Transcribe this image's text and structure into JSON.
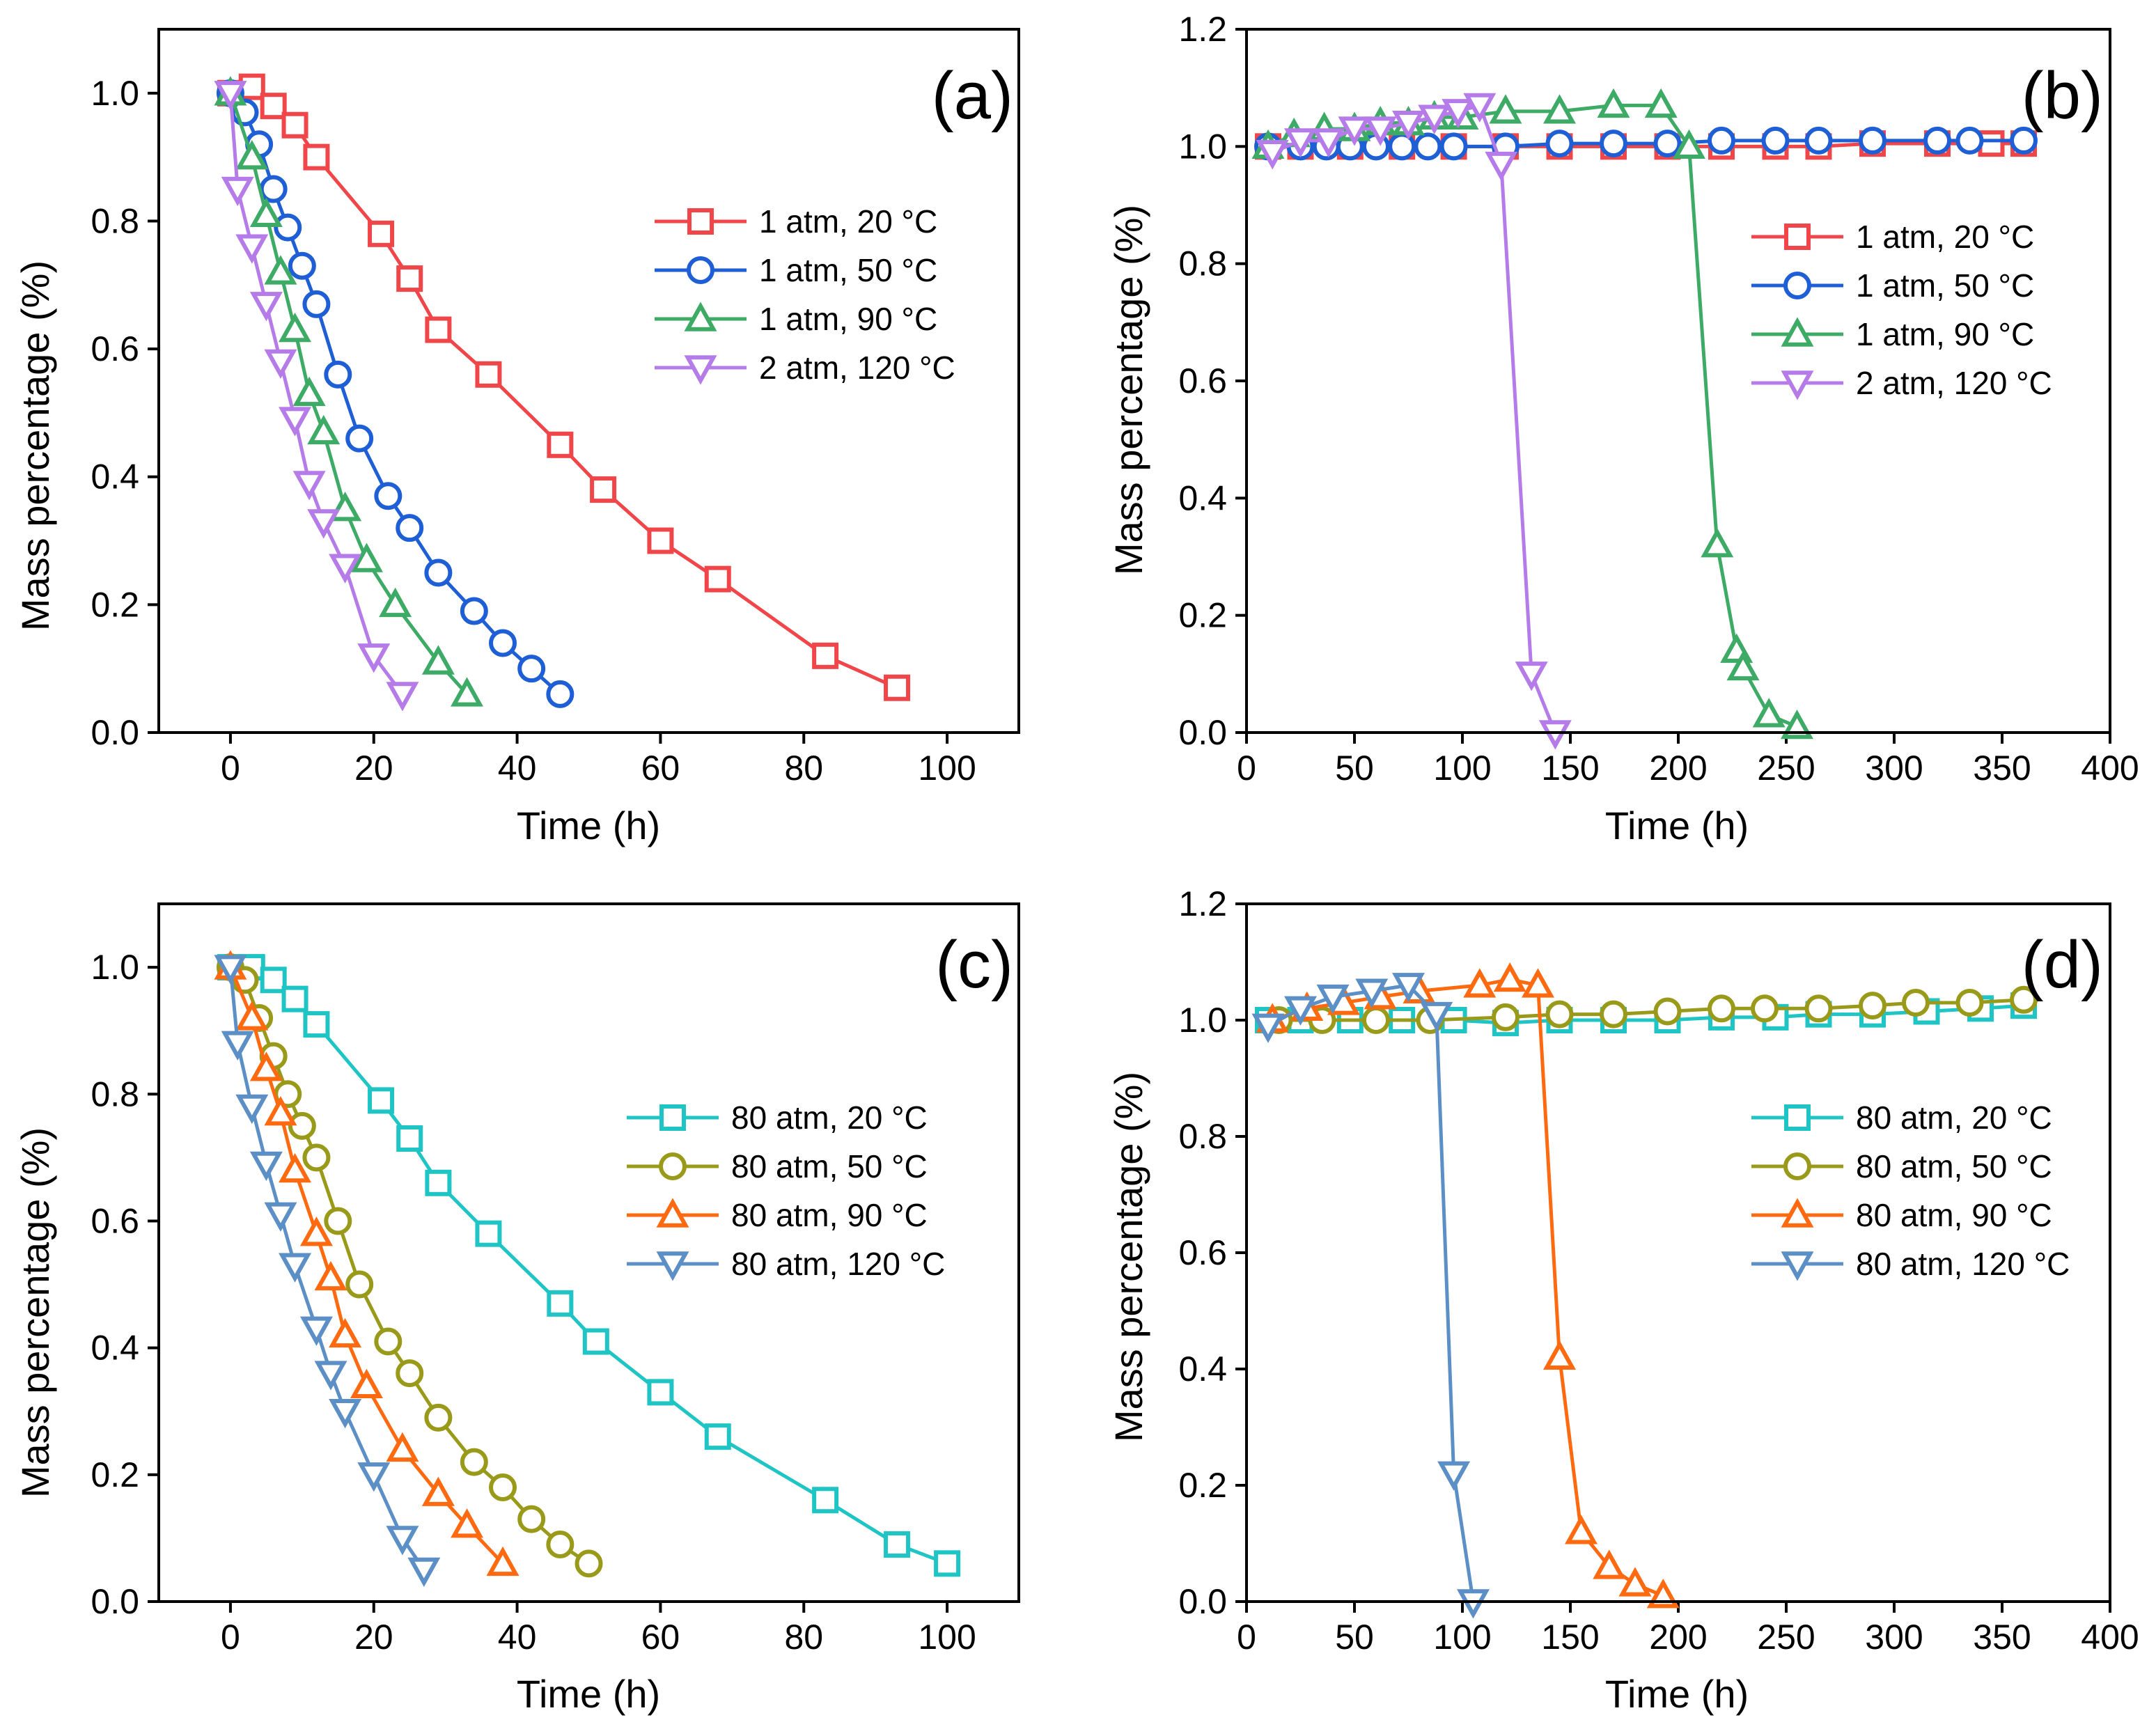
{
  "chart_data": [
    {
      "type": "line",
      "panel_label": "(a)",
      "xlabel": "Time (h)",
      "ylabel": "Mass percentage (%)",
      "xlim": [
        -10,
        110
      ],
      "ylim": [
        0,
        1.1
      ],
      "xticks": [
        0,
        20,
        40,
        60,
        80,
        100
      ],
      "yticks": [
        0.0,
        0.2,
        0.4,
        0.6,
        0.8,
        1.0
      ],
      "xtick_labels": [
        "0",
        "20",
        "40",
        "60",
        "80",
        "100"
      ],
      "ytick_labels": [
        "0.0",
        "0.2",
        "0.4",
        "0.6",
        "0.8",
        "1.0"
      ],
      "legend_position": "center-right",
      "series": [
        {
          "name": "1 atm, 20 °C",
          "color": "#f0464a",
          "marker": "square",
          "x": [
            0,
            3,
            6,
            9,
            12,
            21,
            25,
            29,
            36,
            46,
            52,
            60,
            68,
            83,
            93
          ],
          "y": [
            1.0,
            1.01,
            0.98,
            0.95,
            0.9,
            0.78,
            0.71,
            0.63,
            0.56,
            0.45,
            0.38,
            0.3,
            0.24,
            0.12,
            0.07
          ]
        },
        {
          "name": "1 atm, 50 °C",
          "color": "#1f5fd6",
          "marker": "circle",
          "x": [
            0,
            2,
            4,
            6,
            8,
            10,
            12,
            15,
            18,
            22,
            25,
            29,
            34,
            38,
            42,
            46
          ],
          "y": [
            1.0,
            0.97,
            0.92,
            0.85,
            0.79,
            0.73,
            0.67,
            0.56,
            0.46,
            0.37,
            0.32,
            0.25,
            0.19,
            0.14,
            0.1,
            0.06
          ]
        },
        {
          "name": "1 atm, 90 °C",
          "color": "#3daa66",
          "marker": "triangle-up",
          "x": [
            0,
            3,
            5,
            7,
            9,
            11,
            13,
            16,
            19,
            23,
            29,
            33
          ],
          "y": [
            1.0,
            0.9,
            0.81,
            0.72,
            0.63,
            0.53,
            0.47,
            0.35,
            0.27,
            0.2,
            0.11,
            0.06
          ]
        },
        {
          "name": "2 atm, 120 °C",
          "color": "#b57be8",
          "marker": "triangle-down",
          "x": [
            0,
            1,
            3,
            5,
            7,
            9,
            11,
            13,
            16,
            20,
            24
          ],
          "y": [
            1.0,
            0.85,
            0.76,
            0.67,
            0.58,
            0.49,
            0.39,
            0.33,
            0.26,
            0.12,
            0.06
          ]
        }
      ]
    },
    {
      "type": "line",
      "panel_label": "(b)",
      "xlabel": "Time (h)",
      "ylabel": "Mass percentage (%)",
      "xlim": [
        0,
        400
      ],
      "ylim": [
        0,
        1.2
      ],
      "xticks": [
        0,
        50,
        100,
        150,
        200,
        250,
        300,
        350,
        400
      ],
      "yticks": [
        0.0,
        0.2,
        0.4,
        0.6,
        0.8,
        1.0,
        1.2
      ],
      "xtick_labels": [
        "0",
        "50",
        "100",
        "150",
        "200",
        "250",
        "300",
        "350",
        "400"
      ],
      "ytick_labels": [
        "0.0",
        "0.2",
        "0.4",
        "0.6",
        "0.8",
        "1.0",
        "1.2"
      ],
      "legend_position": "center-right",
      "series": [
        {
          "name": "1 atm, 20 °C",
          "color": "#f0464a",
          "marker": "square",
          "x": [
            10,
            25,
            48,
            72,
            96,
            120,
            145,
            170,
            195,
            220,
            245,
            265,
            290,
            320,
            345,
            360
          ],
          "y": [
            1.0,
            1.0,
            1.0,
            1.0,
            1.0,
            1.0,
            1.0,
            1.0,
            1.0,
            1.0,
            1.0,
            1.0,
            1.005,
            1.005,
            1.005,
            1.005
          ]
        },
        {
          "name": "1 atm, 50 °C",
          "color": "#1f5fd6",
          "marker": "circle",
          "x": [
            10,
            25,
            37,
            48,
            60,
            72,
            84,
            96,
            120,
            145,
            170,
            195,
            220,
            245,
            265,
            290,
            320,
            335,
            360
          ],
          "y": [
            1.0,
            1.0,
            1.0,
            1.0,
            1.0,
            1.0,
            1.0,
            1.0,
            1.0,
            1.005,
            1.005,
            1.005,
            1.01,
            1.01,
            1.01,
            1.01,
            1.01,
            1.01,
            1.01
          ]
        },
        {
          "name": "1 atm, 90 °C",
          "color": "#3daa66",
          "marker": "triangle-up",
          "x": [
            10,
            22,
            36,
            50,
            62,
            75,
            87,
            100,
            120,
            145,
            170,
            192,
            205,
            218,
            227,
            230,
            242,
            255
          ],
          "y": [
            1.0,
            1.02,
            1.03,
            1.03,
            1.04,
            1.04,
            1.05,
            1.05,
            1.06,
            1.06,
            1.07,
            1.07,
            1.0,
            0.32,
            0.14,
            0.11,
            0.03,
            0.01
          ]
        },
        {
          "name": "2 atm, 120 °C",
          "color": "#b57be8",
          "marker": "triangle-down",
          "x": [
            12,
            25,
            38,
            50,
            62,
            75,
            87,
            98,
            108,
            118,
            132,
            143
          ],
          "y": [
            0.99,
            1.01,
            1.01,
            1.03,
            1.03,
            1.04,
            1.05,
            1.06,
            1.07,
            0.97,
            0.1,
            0.0
          ]
        }
      ]
    },
    {
      "type": "line",
      "panel_label": "(c)",
      "xlabel": "Time (h)",
      "ylabel": "Mass percentage (%)",
      "xlim": [
        -10,
        110
      ],
      "ylim": [
        0,
        1.1
      ],
      "xticks": [
        0,
        20,
        40,
        60,
        80,
        100
      ],
      "yticks": [
        0.0,
        0.2,
        0.4,
        0.6,
        0.8,
        1.0
      ],
      "xtick_labels": [
        "0",
        "20",
        "40",
        "60",
        "80",
        "100"
      ],
      "ytick_labels": [
        "0.0",
        "0.2",
        "0.4",
        "0.6",
        "0.8",
        "1.0"
      ],
      "legend_position": "center-right",
      "series": [
        {
          "name": "80 atm, 20 °C",
          "color": "#1fc4c4",
          "marker": "square",
          "x": [
            0,
            3,
            6,
            9,
            12,
            21,
            25,
            29,
            36,
            46,
            51,
            60,
            68,
            83,
            93,
            100
          ],
          "y": [
            1.0,
            1.0,
            0.98,
            0.95,
            0.91,
            0.79,
            0.73,
            0.66,
            0.58,
            0.47,
            0.41,
            0.33,
            0.26,
            0.16,
            0.09,
            0.06
          ]
        },
        {
          "name": "80 atm, 50 °C",
          "color": "#9a9a1a",
          "marker": "circle",
          "x": [
            0,
            2,
            4,
            6,
            8,
            10,
            12,
            15,
            18,
            22,
            25,
            29,
            34,
            38,
            42,
            46,
            50
          ],
          "y": [
            1.0,
            0.98,
            0.92,
            0.86,
            0.8,
            0.75,
            0.7,
            0.6,
            0.5,
            0.41,
            0.36,
            0.29,
            0.22,
            0.18,
            0.13,
            0.09,
            0.06
          ]
        },
        {
          "name": "80 atm, 90 °C",
          "color": "#ff6a10",
          "marker": "triangle-up",
          "x": [
            0,
            3,
            5,
            7,
            9,
            12,
            14,
            16,
            19,
            24,
            29,
            33,
            38
          ],
          "y": [
            1.0,
            0.92,
            0.84,
            0.77,
            0.68,
            0.58,
            0.51,
            0.42,
            0.34,
            0.24,
            0.17,
            0.12,
            0.06
          ]
        },
        {
          "name": "80 atm, 120 °C",
          "color": "#5b8fc6",
          "marker": "triangle-down",
          "x": [
            0,
            1,
            3,
            5,
            7,
            9,
            12,
            14,
            16,
            20,
            24,
            27
          ],
          "y": [
            1.0,
            0.88,
            0.78,
            0.69,
            0.61,
            0.53,
            0.43,
            0.36,
            0.3,
            0.2,
            0.1,
            0.05
          ]
        }
      ]
    },
    {
      "type": "line",
      "panel_label": "(d)",
      "xlabel": "Time (h)",
      "ylabel": "Mass percentage (%)",
      "xlim": [
        0,
        400
      ],
      "ylim": [
        0,
        1.2
      ],
      "xticks": [
        0,
        50,
        100,
        150,
        200,
        250,
        300,
        350,
        400
      ],
      "yticks": [
        0.0,
        0.2,
        0.4,
        0.6,
        0.8,
        1.0,
        1.2
      ],
      "xtick_labels": [
        "0",
        "50",
        "100",
        "150",
        "200",
        "250",
        "300",
        "350",
        "400"
      ],
      "ytick_labels": [
        "0.0",
        "0.2",
        "0.4",
        "0.6",
        "0.8",
        "1.0",
        "1.2"
      ],
      "legend_position": "center-right",
      "series": [
        {
          "name": "80 atm, 20 °C",
          "color": "#1fc4c4",
          "marker": "square",
          "x": [
            10,
            25,
            48,
            72,
            96,
            120,
            145,
            170,
            195,
            220,
            245,
            265,
            290,
            315,
            340,
            360
          ],
          "y": [
            1.0,
            1.0,
            1.0,
            1.0,
            1.0,
            0.995,
            1.0,
            1.0,
            1.0,
            1.005,
            1.005,
            1.01,
            1.01,
            1.015,
            1.02,
            1.025
          ]
        },
        {
          "name": "80 atm, 50 °C",
          "color": "#9a9a1a",
          "marker": "circle",
          "x": [
            15,
            35,
            60,
            85,
            120,
            145,
            170,
            195,
            220,
            240,
            265,
            290,
            310,
            335,
            360
          ],
          "y": [
            1.0,
            1.0,
            1.0,
            1.0,
            1.005,
            1.01,
            1.01,
            1.015,
            1.02,
            1.02,
            1.02,
            1.025,
            1.03,
            1.03,
            1.035
          ]
        },
        {
          "name": "80 atm, 90 °C",
          "color": "#ff6a10",
          "marker": "triangle-up",
          "x": [
            12,
            28,
            45,
            62,
            80,
            108,
            122,
            135,
            145,
            155,
            168,
            180,
            193
          ],
          "y": [
            1.0,
            1.02,
            1.03,
            1.04,
            1.05,
            1.06,
            1.07,
            1.06,
            0.42,
            0.12,
            0.06,
            0.03,
            0.01
          ]
        },
        {
          "name": "80 atm, 120 °C",
          "color": "#5b8fc6",
          "marker": "triangle-down",
          "x": [
            10,
            25,
            40,
            58,
            75,
            88,
            96,
            105
          ],
          "y": [
            0.99,
            1.02,
            1.04,
            1.05,
            1.06,
            1.01,
            0.22,
            0.0
          ]
        }
      ]
    }
  ]
}
